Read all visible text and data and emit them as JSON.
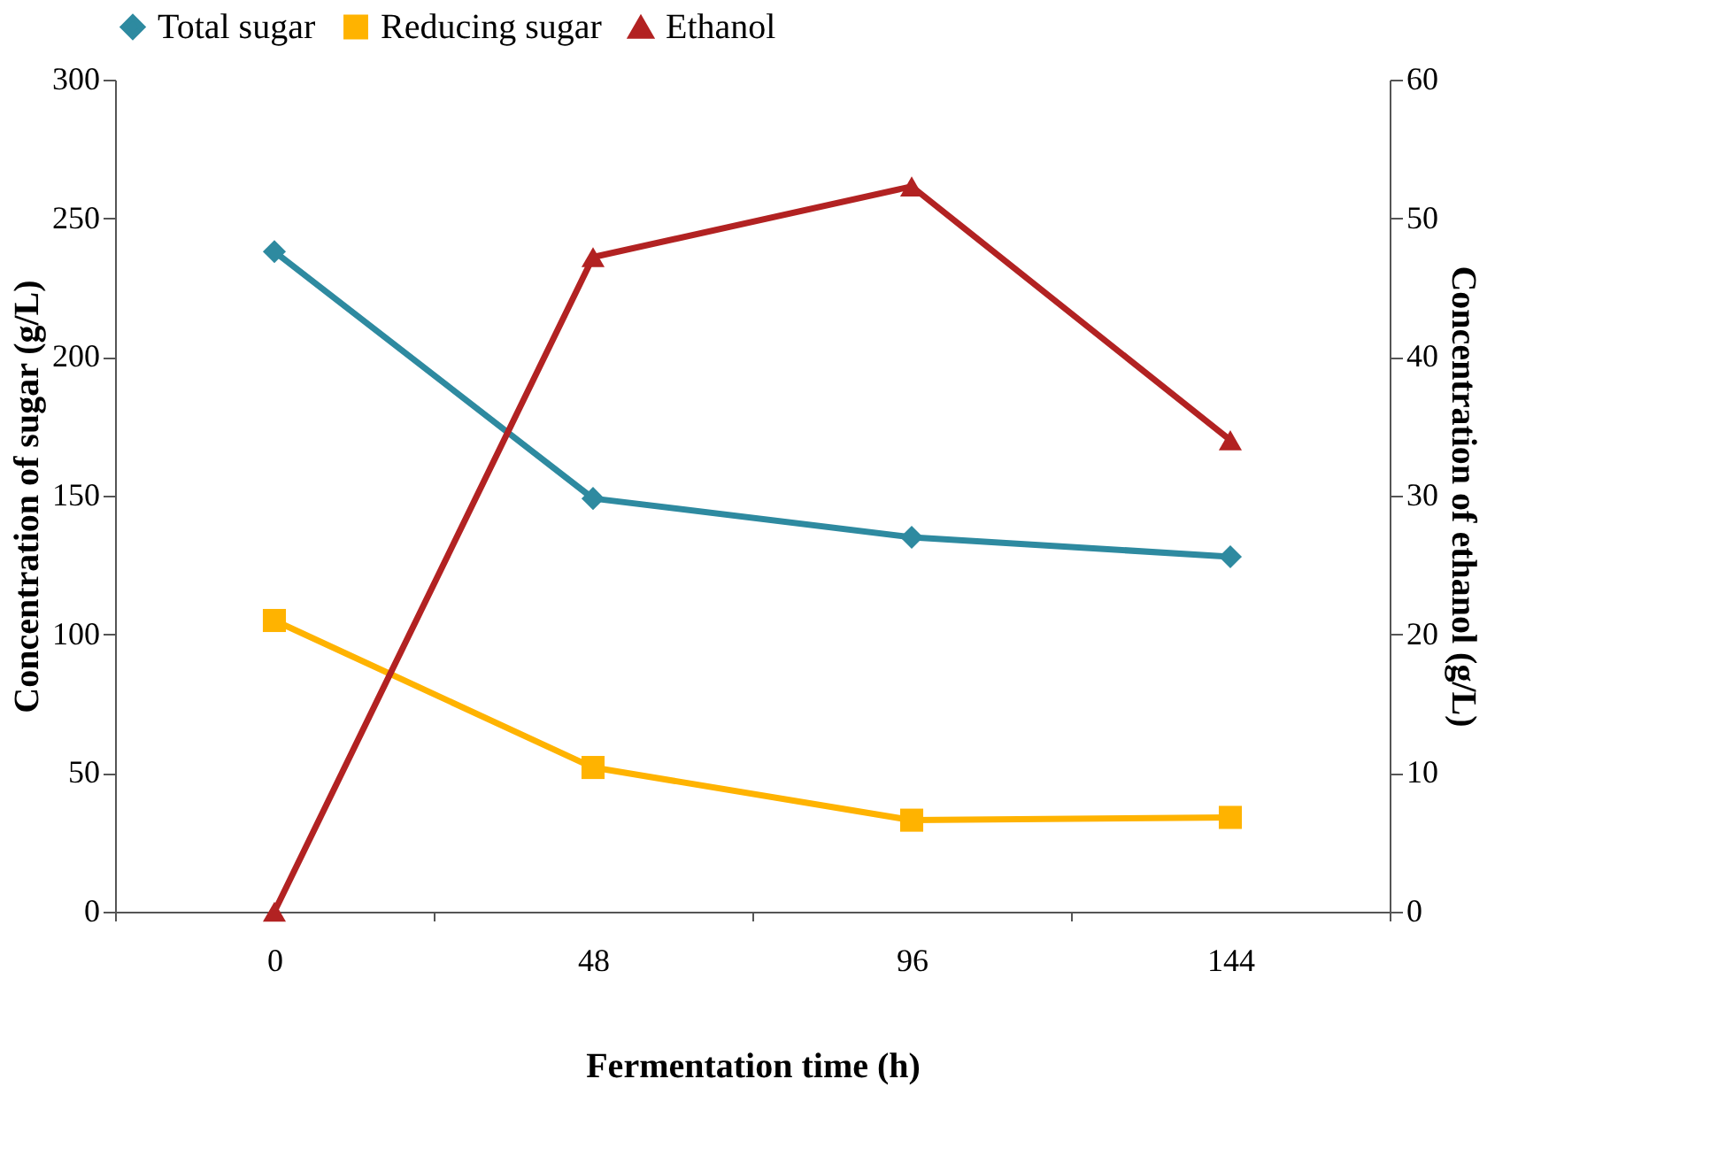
{
  "chart_data": {
    "type": "line",
    "xlabel": "Fermentation time (h)",
    "ylabel": "Concentration of sugar (g/L)",
    "y2label": "Concentration of ethanol (g/L)",
    "categories": [
      "0",
      "48",
      "96",
      "144"
    ],
    "series": [
      {
        "name": "Total sugar",
        "color": "#2e8aa0",
        "marker": "diamond",
        "values": [
          238,
          149,
          135,
          128
        ]
      },
      {
        "name": "Reducing sugar",
        "color": "#ffb300",
        "marker": "square",
        "values": [
          105,
          52,
          33,
          34
        ]
      },
      {
        "name": "Ethanol",
        "color": "#b22222",
        "marker": "triangle",
        "axis": "y2",
        "values": [
          0,
          47.2,
          52.3,
          34
        ]
      }
    ],
    "ylim": [
      0,
      300
    ],
    "yticks": [
      0,
      50,
      100,
      150,
      200,
      250,
      300
    ],
    "y2lim": [
      0,
      60
    ],
    "y2ticks": [
      0,
      10,
      20,
      30,
      40,
      50,
      60
    ],
    "grid": false,
    "legend": "top",
    "line_style": "solid"
  }
}
